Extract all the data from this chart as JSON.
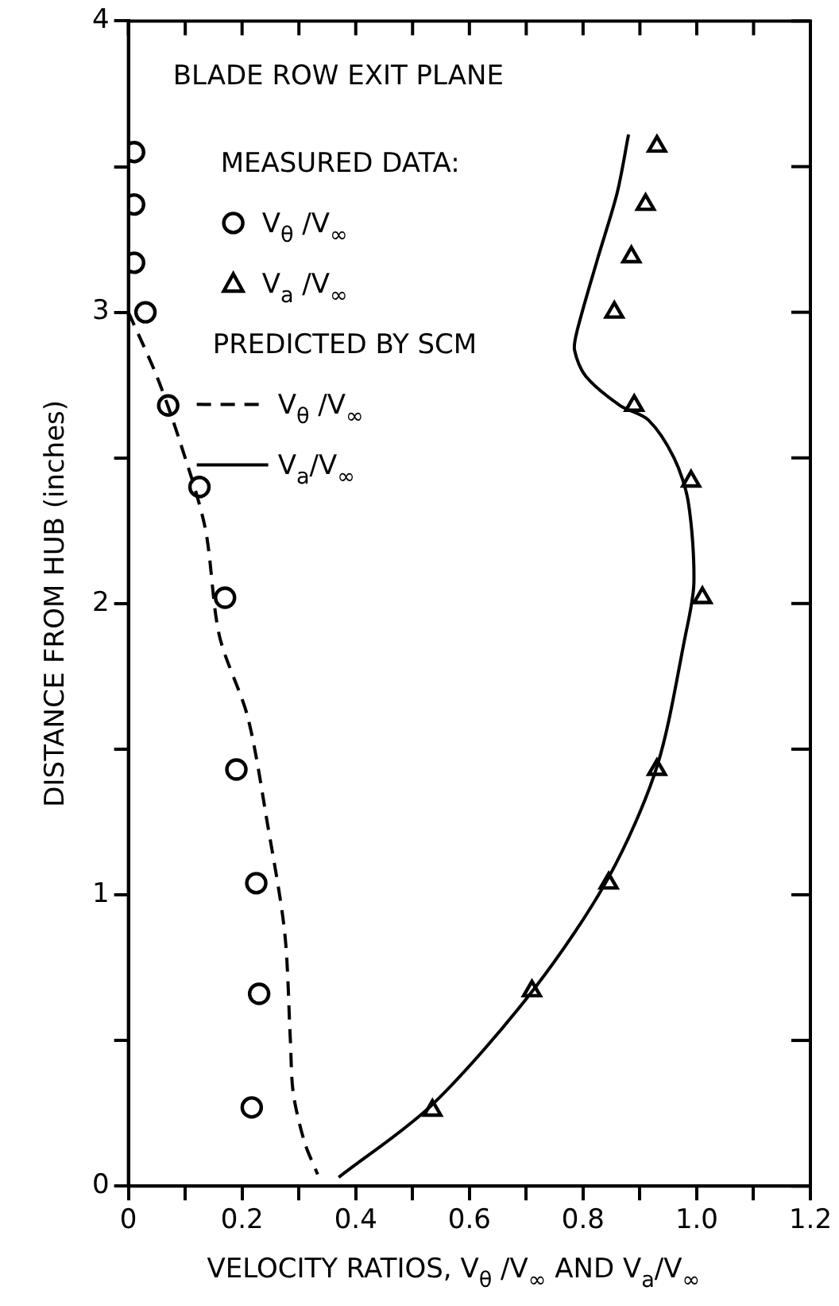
{
  "chart_data": {
    "type": "scatter",
    "title": "BLADE ROW EXIT PLANE",
    "xlabel": "VELOCITY RATIOS, V$_{θ}$ /V$_{∞}$ AND V$_{a}$/V$_{∞}$",
    "ylabel": "DISTANCE FROM HUB (inches)",
    "xlim": [
      0,
      1.2
    ],
    "ylim": [
      0,
      4
    ],
    "xticks": [
      0,
      {
        "value": 0.1,
        "label": null
      },
      0.2,
      {
        "value": 0.3,
        "label": null
      },
      0.4,
      {
        "value": 0.5,
        "label": null
      },
      0.6,
      {
        "value": 0.7,
        "label": null
      },
      0.8,
      {
        "value": 0.9,
        "label": null
      },
      {
        "value": 1,
        "label": "1.0"
      },
      {
        "value": 1.1,
        "label": null
      },
      1.2
    ],
    "yticks": [
      0,
      {
        "value": 0.5,
        "label": null
      },
      1,
      {
        "value": 1.5,
        "label": null
      },
      2,
      {
        "value": 2.5,
        "label": null
      },
      3,
      {
        "value": 3.5,
        "label": null
      },
      4
    ],
    "grid": false,
    "legend": "top left",
    "annotations": [
      "MEASURED DATA:",
      "PREDICTED BY SCM"
    ],
    "series": [
      {
        "name": "V$_{θ}$ /V$_{∞}$",
        "type": "scatter",
        "marker": "circle",
        "color": "#000000",
        "x": [
          0.01,
          0.01,
          0.01,
          0.03,
          0.07,
          0.125,
          0.17,
          0.19,
          0.225,
          0.23,
          0.217
        ],
        "values": [
          3.55,
          3.37,
          3.17,
          3.0,
          2.68,
          2.4,
          2.02,
          1.43,
          1.04,
          0.66,
          0.27
        ]
      },
      {
        "name": "V$_{a}$ /V$_{∞}$",
        "type": "scatter",
        "marker": "triangle",
        "color": "#000000",
        "x": [
          0.93,
          0.91,
          0.885,
          0.855,
          0.89,
          0.99,
          1.01,
          0.93,
          0.845,
          0.71,
          0.535
        ],
        "values": [
          3.57,
          3.37,
          3.19,
          3.0,
          2.68,
          2.42,
          2.02,
          1.43,
          1.04,
          0.67,
          0.26
        ]
      },
      {
        "name": "V$_{θ}$ /V$_{∞}$",
        "type": "line",
        "line_style": "dashed",
        "color": "#000000",
        "x": [
          0,
          0.05,
          0.09,
          0.135,
          0.16,
          0.21,
          0.245,
          0.275,
          0.285,
          0.29,
          0.31,
          0.333
        ],
        "values": [
          3.0,
          2.78,
          2.56,
          2.26,
          1.89,
          1.61,
          1.24,
          0.87,
          0.5,
          0.32,
          0.15,
          0.04
        ]
      },
      {
        "name": "V$_{a}$/V$_{∞}$",
        "type": "line",
        "line_style": "solid",
        "color": "#000000",
        "x": [
          0.37,
          0.535,
          0.715,
          0.845,
          0.93,
          0.98,
          0.995,
          0.985,
          0.96,
          0.915,
          0.865,
          0.805,
          0.785,
          0.79,
          0.825,
          0.86,
          0.88
        ],
        "values": [
          0.03,
          0.28,
          0.68,
          1.06,
          1.44,
          1.89,
          2.07,
          2.35,
          2.5,
          2.63,
          2.68,
          2.78,
          2.87,
          2.94,
          3.18,
          3.41,
          3.61
        ]
      }
    ]
  }
}
